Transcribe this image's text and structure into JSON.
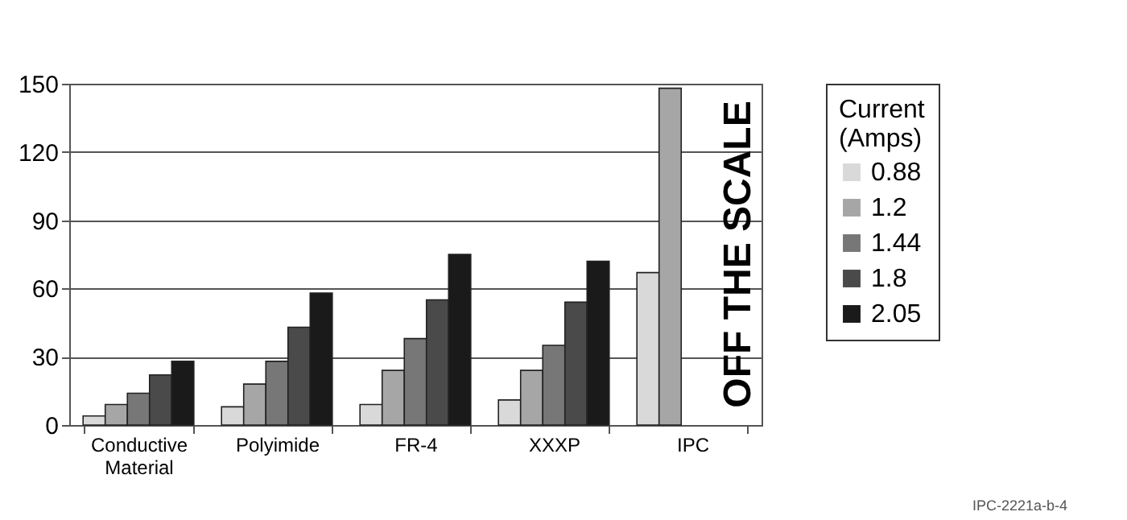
{
  "chart_data": {
    "type": "bar",
    "categories": [
      "Conductive Material",
      "Polyimide",
      "FR-4",
      "XXXP",
      "IPC"
    ],
    "series": [
      {
        "name": "0.88",
        "color": "#d9d9d9",
        "values": [
          4,
          8,
          9,
          11,
          67
        ]
      },
      {
        "name": "1.2",
        "color": "#a6a6a6",
        "values": [
          9,
          18,
          24,
          24,
          148
        ]
      },
      {
        "name": "1.44",
        "color": "#777777",
        "values": [
          14,
          28,
          38,
          35,
          null
        ]
      },
      {
        "name": "1.8",
        "color": "#4a4a4a",
        "values": [
          22,
          43,
          55,
          54,
          null
        ]
      },
      {
        "name": "2.05",
        "color": "#1a1a1a",
        "values": [
          28,
          58,
          75,
          72,
          null
        ]
      }
    ],
    "ylim": [
      0,
      150
    ],
    "yticks": [
      0,
      30,
      60,
      90,
      120,
      150
    ],
    "grid": "y",
    "legend": "right",
    "legend_title": "Current (Amps)",
    "annotations": [
      "OFF THE SCALE",
      "IPC-2221a-b-4"
    ]
  }
}
